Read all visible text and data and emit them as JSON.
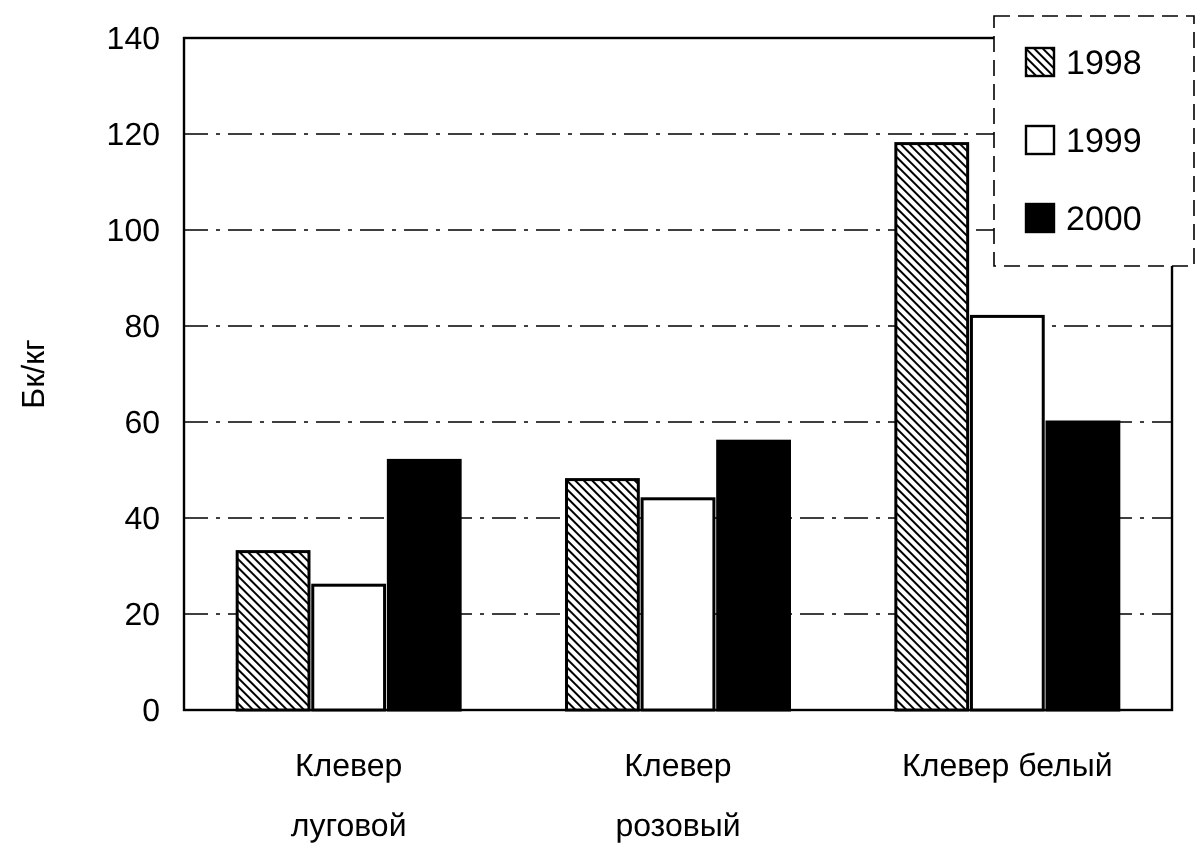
{
  "chart_data": {
    "type": "bar",
    "ylabel": "Бк/кг",
    "categories": [
      "Клевер луговой",
      "Клевер розовый",
      "Клевер белый"
    ],
    "series": [
      {
        "name": "1998",
        "color": "#000000",
        "values": [
          33,
          48,
          118
        ]
      },
      {
        "name": "1999",
        "color": "#ffffff",
        "values": [
          26,
          44,
          82
        ]
      },
      {
        "name": "2000",
        "color": "#000000",
        "values": [
          52,
          56,
          60
        ]
      }
    ],
    "ylim": [
      0,
      140
    ],
    "yticks": [
      0,
      20,
      40,
      60,
      80,
      100,
      120,
      140
    ],
    "grid": "y",
    "legend": "top right"
  }
}
